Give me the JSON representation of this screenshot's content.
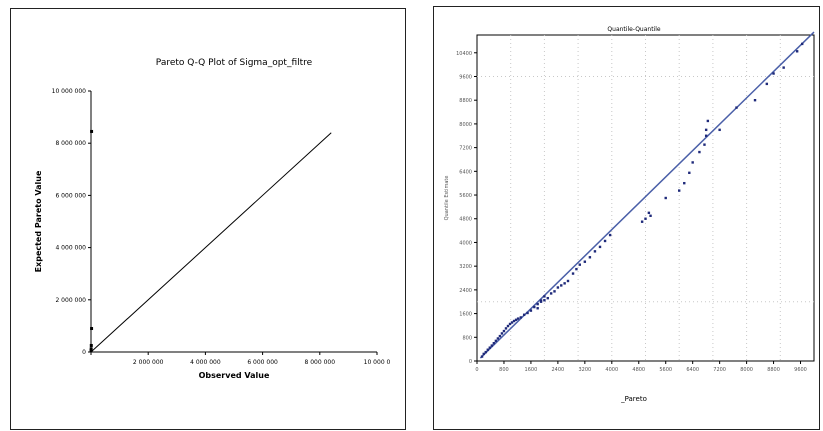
{
  "chart_data": [
    {
      "type": "scatter",
      "title": "Pareto Q-Q Plot of Sigma_opt_filtre",
      "xlabel": "Observed Value",
      "ylabel": "Expected Pareto Value",
      "xlim": [
        0,
        10000000
      ],
      "ylim": [
        0,
        10000000
      ],
      "x_ticks": [
        "",
        "2 000 000",
        "4 000 000",
        "6 000 000",
        "8 000 000",
        "10 000 0"
      ],
      "y_ticks": [
        "0",
        "2 000 000",
        "4 000 000",
        "6 000 000",
        "8 000 000",
        "10 000 000"
      ],
      "grid": false,
      "reference_line": {
        "x": [
          0,
          8400000
        ],
        "y": [
          0,
          8400000
        ]
      },
      "points": [
        {
          "x": 20000,
          "y": 8450000
        },
        {
          "x": 20000,
          "y": 900000
        },
        {
          "x": 10000,
          "y": 250000
        },
        {
          "x": 5000,
          "y": 120000
        },
        {
          "x": 3000,
          "y": 50000
        }
      ]
    },
    {
      "type": "scatter",
      "title": "Quantile-Quantile",
      "xlabel": "_Pareto",
      "ylabel": "Quantile Estimate",
      "xlim": [
        0,
        10000
      ],
      "ylim": [
        0,
        11000
      ],
      "grid": true,
      "x_ticks": [
        "0",
        "800",
        "1600",
        "2400",
        "3200",
        "4000",
        "4800",
        "5600",
        "6400",
        "7200",
        "8000",
        "8800",
        "9600"
      ],
      "y_ticks": [
        "0",
        "800",
        "1600",
        "2400",
        "3200",
        "4000",
        "4800",
        "5600",
        "6400",
        "7200",
        "8000",
        "8800",
        "9600",
        "10400"
      ],
      "reference_line": {
        "x": [
          100,
          10000
        ],
        "y": [
          100,
          11100
        ]
      },
      "points": [
        {
          "x": 150,
          "y": 150
        },
        {
          "x": 200,
          "y": 240
        },
        {
          "x": 260,
          "y": 300
        },
        {
          "x": 320,
          "y": 380
        },
        {
          "x": 380,
          "y": 450
        },
        {
          "x": 440,
          "y": 520
        },
        {
          "x": 500,
          "y": 600
        },
        {
          "x": 560,
          "y": 680
        },
        {
          "x": 620,
          "y": 760
        },
        {
          "x": 680,
          "y": 840
        },
        {
          "x": 740,
          "y": 930
        },
        {
          "x": 800,
          "y": 1010
        },
        {
          "x": 860,
          "y": 1100
        },
        {
          "x": 920,
          "y": 1180
        },
        {
          "x": 980,
          "y": 1250
        },
        {
          "x": 1040,
          "y": 1300
        },
        {
          "x": 1100,
          "y": 1350
        },
        {
          "x": 1160,
          "y": 1390
        },
        {
          "x": 1220,
          "y": 1430
        },
        {
          "x": 1300,
          "y": 1470
        },
        {
          "x": 1400,
          "y": 1560
        },
        {
          "x": 1500,
          "y": 1620
        },
        {
          "x": 1600,
          "y": 1700
        },
        {
          "x": 1700,
          "y": 1820
        },
        {
          "x": 1800,
          "y": 1920
        },
        {
          "x": 1900,
          "y": 2000
        },
        {
          "x": 2000,
          "y": 2050
        },
        {
          "x": 2100,
          "y": 2120
        },
        {
          "x": 2200,
          "y": 2280
        },
        {
          "x": 2300,
          "y": 2350
        },
        {
          "x": 2400,
          "y": 2480
        },
        {
          "x": 2500,
          "y": 2550
        },
        {
          "x": 2600,
          "y": 2620
        },
        {
          "x": 2700,
          "y": 2700
        },
        {
          "x": 1800,
          "y": 1780
        },
        {
          "x": 1900,
          "y": 2040
        },
        {
          "x": 2000,
          "y": 2180
        },
        {
          "x": 2850,
          "y": 2950
        },
        {
          "x": 2950,
          "y": 3100
        },
        {
          "x": 3050,
          "y": 3250
        },
        {
          "x": 3200,
          "y": 3350
        },
        {
          "x": 3350,
          "y": 3500
        },
        {
          "x": 3500,
          "y": 3700
        },
        {
          "x": 3650,
          "y": 3850
        },
        {
          "x": 3800,
          "y": 4050
        },
        {
          "x": 3950,
          "y": 4250
        },
        {
          "x": 4900,
          "y": 4700
        },
        {
          "x": 5000,
          "y": 4800
        },
        {
          "x": 5100,
          "y": 5000
        },
        {
          "x": 5150,
          "y": 4900
        },
        {
          "x": 5600,
          "y": 5500
        },
        {
          "x": 6000,
          "y": 5750
        },
        {
          "x": 6150,
          "y": 6000
        },
        {
          "x": 6300,
          "y": 6350
        },
        {
          "x": 6400,
          "y": 6700
        },
        {
          "x": 6600,
          "y": 7050
        },
        {
          "x": 6750,
          "y": 7300
        },
        {
          "x": 6800,
          "y": 7600
        },
        {
          "x": 6850,
          "y": 8100
        },
        {
          "x": 6800,
          "y": 7800
        },
        {
          "x": 7200,
          "y": 7800
        },
        {
          "x": 7700,
          "y": 8550
        },
        {
          "x": 8250,
          "y": 8800
        },
        {
          "x": 8600,
          "y": 9350
        },
        {
          "x": 8800,
          "y": 9700
        },
        {
          "x": 9100,
          "y": 9900
        },
        {
          "x": 9500,
          "y": 10450
        },
        {
          "x": 9650,
          "y": 10700
        }
      ]
    }
  ]
}
